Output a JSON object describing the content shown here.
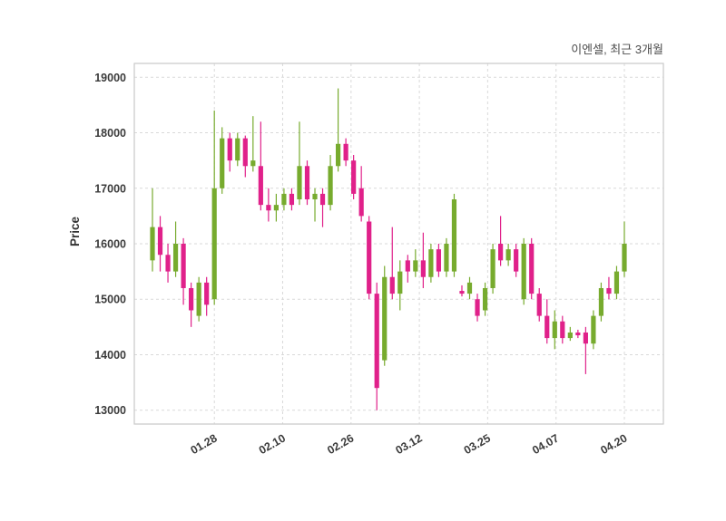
{
  "title": "이엔셀, 최근 3개월",
  "chart_data": {
    "type": "candlestick",
    "title": "이엔셀, 최근 3개월",
    "ylabel": "Price",
    "ylim": [
      12750,
      19250
    ],
    "yticks": [
      13000,
      14000,
      15000,
      16000,
      17000,
      18000,
      19000
    ],
    "x_ticks": [
      {
        "label": "01.28",
        "pos": 8
      },
      {
        "label": "02.10",
        "pos": 16.83
      },
      {
        "label": "02.26",
        "pos": 25.67
      },
      {
        "label": "03.12",
        "pos": 34.5
      },
      {
        "label": "03.25",
        "pos": 43.33
      },
      {
        "label": "04.07",
        "pos": 52.17
      },
      {
        "label": "04.20",
        "pos": 61
      }
    ],
    "up_color": "#77ab2e",
    "down_color": "#e0218a",
    "grid_color": "#d9d9d9",
    "spine_color": "#c9c9c9",
    "tick_label_color": "#3b3b3b",
    "candles": [
      [
        15700,
        17000,
        15500,
        16300
      ],
      [
        16300,
        16500,
        15500,
        15800
      ],
      [
        15800,
        16000,
        15300,
        15500
      ],
      [
        15500,
        16400,
        15400,
        16000
      ],
      [
        16000,
        16100,
        14900,
        15200
      ],
      [
        15200,
        15300,
        14500,
        14800
      ],
      [
        14700,
        15400,
        14600,
        15300
      ],
      [
        15300,
        15400,
        14700,
        14900
      ],
      [
        15000,
        18400,
        14900,
        17000
      ],
      [
        17000,
        18100,
        16900,
        17900
      ],
      [
        17900,
        18000,
        17300,
        17500
      ],
      [
        17500,
        18000,
        17400,
        17900
      ],
      [
        17900,
        17950,
        17200,
        17400
      ],
      [
        17400,
        18300,
        17300,
        17500
      ],
      [
        17400,
        18200,
        16600,
        16700
      ],
      [
        16700,
        17000,
        16400,
        16600
      ],
      [
        16600,
        16900,
        16400,
        16700
      ],
      [
        16700,
        17000,
        16600,
        16900
      ],
      [
        16900,
        17000,
        16600,
        16700
      ],
      [
        16800,
        18200,
        16700,
        17400
      ],
      [
        17400,
        17500,
        16700,
        16800
      ],
      [
        16800,
        17000,
        16400,
        16900
      ],
      [
        16900,
        17000,
        16300,
        16700
      ],
      [
        16700,
        17600,
        16600,
        17400
      ],
      [
        17400,
        18800,
        17300,
        17800
      ],
      [
        17800,
        17900,
        17400,
        17500
      ],
      [
        17500,
        17600,
        16800,
        16900
      ],
      [
        17000,
        17400,
        16400,
        16500
      ],
      [
        16400,
        16500,
        15000,
        15100
      ],
      [
        15100,
        15300,
        13000,
        13400
      ],
      [
        13900,
        15600,
        13800,
        15400
      ],
      [
        15400,
        16300,
        15000,
        15100
      ],
      [
        15100,
        15700,
        14800,
        15500
      ],
      [
        15700,
        15800,
        15300,
        15500
      ],
      [
        15500,
        15900,
        15400,
        15700
      ],
      [
        15700,
        16200,
        15200,
        15400
      ],
      [
        15400,
        16000,
        15300,
        15900
      ],
      [
        15900,
        16000,
        15400,
        15500
      ],
      [
        15500,
        16100,
        15400,
        16000
      ],
      [
        15500,
        16900,
        15400,
        16800
      ],
      [
        15150,
        15250,
        15050,
        15100
      ],
      [
        15100,
        15400,
        15000,
        15300
      ],
      [
        15000,
        15100,
        14600,
        14700
      ],
      [
        14800,
        15300,
        14700,
        15200
      ],
      [
        15200,
        16000,
        15100,
        15900
      ],
      [
        16000,
        16500,
        15600,
        15700
      ],
      [
        15700,
        16000,
        15600,
        15900
      ],
      [
        15900,
        16000,
        15400,
        15500
      ],
      [
        15000,
        16100,
        14900,
        16000
      ],
      [
        16000,
        16100,
        15000,
        15100
      ],
      [
        15100,
        15200,
        14600,
        14700
      ],
      [
        14700,
        15000,
        14200,
        14300
      ],
      [
        14300,
        14800,
        14100,
        14600
      ],
      [
        14600,
        14700,
        14200,
        14300
      ],
      [
        14300,
        14500,
        14250,
        14400
      ],
      [
        14400,
        14450,
        14300,
        14350
      ],
      [
        14400,
        14500,
        13650,
        14200
      ],
      [
        14200,
        14800,
        14100,
        14700
      ],
      [
        14700,
        15300,
        14600,
        15200
      ],
      [
        15200,
        15400,
        15000,
        15100
      ],
      [
        15100,
        15600,
        15000,
        15500
      ],
      [
        15500,
        16400,
        15400,
        16000
      ]
    ]
  }
}
